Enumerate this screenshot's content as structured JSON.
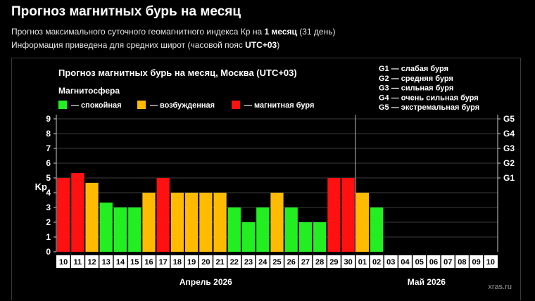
{
  "page": {
    "title": "Прогноз магнитных бурь на месяц",
    "subtitle1": {
      "before": "Прогноз максимального суточного геомагнитного индекса Кр на ",
      "bold": "1 месяц",
      "after": " (31 день)"
    },
    "subtitle2": {
      "before": "Информация приведена для средних широт (часовой пояс ",
      "bold": "UTC+03",
      "after": ")"
    }
  },
  "chart_data": {
    "type": "bar",
    "title": "Прогноз магнитных бурь на месяц, Москва (UTC+03)",
    "legend_title": "Магнитосфера",
    "legend": [
      {
        "label": "— спокойная",
        "color": "#22ee22"
      },
      {
        "label": "— возбужденная",
        "color": "#ffbb00"
      },
      {
        "label": "— магнитная буря",
        "color": "#ff1111"
      }
    ],
    "storm_levels": [
      "G1 — слабая буря",
      "G2 — средняя буря",
      "G3 — сильная буря",
      "G4 — очень сильная буря",
      "G5 — экстремальная буря"
    ],
    "ylabel": "Kp",
    "ylim": [
      0,
      9
    ],
    "yticks": [
      "0",
      "1",
      "2",
      "3",
      "4",
      "5",
      "6",
      "7",
      "8",
      "9"
    ],
    "g_labels": [
      {
        "label": "G1",
        "kp": 5
      },
      {
        "label": "G2",
        "kp": 6
      },
      {
        "label": "G3",
        "kp": 7
      },
      {
        "label": "G4",
        "kp": 8
      },
      {
        "label": "G5",
        "kp": 9
      }
    ],
    "categories": [
      "10",
      "11",
      "12",
      "13",
      "14",
      "15",
      "16",
      "17",
      "18",
      "19",
      "20",
      "21",
      "22",
      "23",
      "24",
      "25",
      "26",
      "27",
      "28",
      "29",
      "30",
      "01",
      "02",
      "03",
      "04",
      "05",
      "06",
      "07",
      "08",
      "09",
      "10"
    ],
    "values": [
      5,
      5.33,
      4.67,
      3.33,
      3,
      3,
      4,
      5,
      4,
      4,
      4,
      4,
      3,
      2,
      3,
      4,
      3,
      2,
      2,
      5,
      5,
      4,
      3,
      null,
      null,
      null,
      null,
      null,
      null,
      null,
      null
    ],
    "colors": {
      "quiet": "#22ee22",
      "active": "#ffbb00",
      "storm": "#ff1111"
    },
    "months": [
      {
        "label": "Апрель 2026",
        "start": 0,
        "count": 21
      },
      {
        "label": "Май 2026",
        "start": 21,
        "count": 10
      }
    ],
    "grid": true,
    "watermark": "xras.ru"
  }
}
